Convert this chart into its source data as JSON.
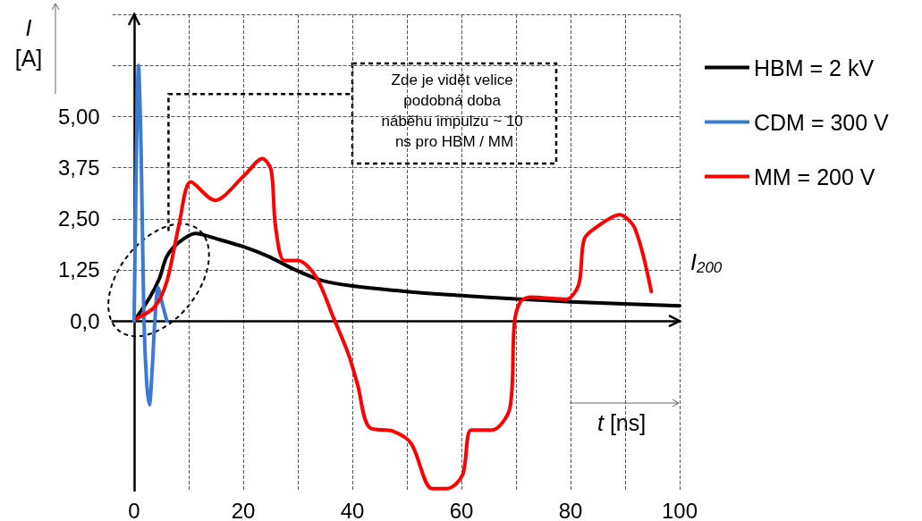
{
  "chart_data": {
    "type": "line",
    "xlabel": "t [ns]",
    "ylabel": "I [A]",
    "xlim": [
      -4,
      100
    ],
    "ylim": [
      -4.15,
      7.5
    ],
    "xticks": [
      0,
      {
        "value": 10,
        "label": null
      },
      20,
      {
        "value": 30,
        "label": null
      },
      40,
      {
        "value": 50,
        "label": null
      },
      60,
      {
        "value": 70,
        "label": null
      },
      80,
      {
        "value": 90,
        "label": null
      },
      100
    ],
    "yticks": [
      {
        "value": 0,
        "label": "0,0"
      },
      {
        "value": 1.25,
        "label": "1,25"
      },
      {
        "value": 2.5,
        "label": "2,50"
      },
      {
        "value": 3.75,
        "label": "3,75"
      },
      {
        "value": 5,
        "label": "5,00"
      },
      {
        "value": 6.25,
        "label": null
      },
      {
        "value": 7.5,
        "label": null
      }
    ],
    "grid": true,
    "legend": "top right",
    "marker": "none",
    "line_style": "solid",
    "annotations": [
      "Zde je vidět velice podobná doba náběhu impulzu ~ 10 ns pro HBM / MM",
      "I$_{200}$"
    ],
    "series": [
      {
        "name": "HBM = 2 kV",
        "color": "#000000",
        "x": [
          0,
          2.8,
          4.6,
          6.0,
          8.2,
          11.2,
          15.3,
          20.2,
          24.6,
          29.5,
          34.4,
          39.8,
          50,
          60,
          70,
          80,
          100
        ],
        "values": [
          0,
          0.56,
          1.03,
          1.58,
          1.92,
          2.14,
          2.0,
          1.81,
          1.58,
          1.25,
          0.99,
          0.86,
          0.72,
          0.62,
          0.54,
          0.47,
          0.37
        ]
      },
      {
        "name": "CDM = 300 V",
        "color": "#3a7bd5",
        "x": [
          0,
          0.3,
          0.8,
          1.3,
          1.8,
          2.3,
          2.8,
          3.3,
          3.8,
          4.4,
          5.2,
          6.0
        ],
        "values": [
          0,
          3,
          6.25,
          4,
          0,
          -1.5,
          -2.05,
          -1.2,
          0,
          0.81,
          0.4,
          0
        ]
      },
      {
        "name": "MM = 200 V",
        "color": "#ff0000",
        "x": [
          0.5,
          3.8,
          6.0,
          8.2,
          10.4,
          14.8,
          20.2,
          23.5,
          25.1,
          25.9,
          27.5,
          30,
          33.3,
          36.6,
          39.3,
          41,
          43.1,
          47.5,
          50.8,
          54.6,
          57.4,
          60.2,
          61.8,
          65.6,
          68.9,
          69.7,
          70.8,
          72.6,
          79.2,
          81.5,
          82.5,
          84.8,
          89,
          91.8,
          94.8
        ],
        "values": [
          0.06,
          0.35,
          0.97,
          2.33,
          3.4,
          2.95,
          3.56,
          3.97,
          3.7,
          2.33,
          1.48,
          1.48,
          1.09,
          0.06,
          -0.82,
          -1.58,
          -2.6,
          -2.7,
          -3.0,
          -4.1,
          -4.1,
          -3.77,
          -2.67,
          -2.67,
          -2.12,
          -0.06,
          0.47,
          0.58,
          0.53,
          0.89,
          2.0,
          2.3,
          2.6,
          2.26,
          0.72
        ]
      }
    ]
  }
}
